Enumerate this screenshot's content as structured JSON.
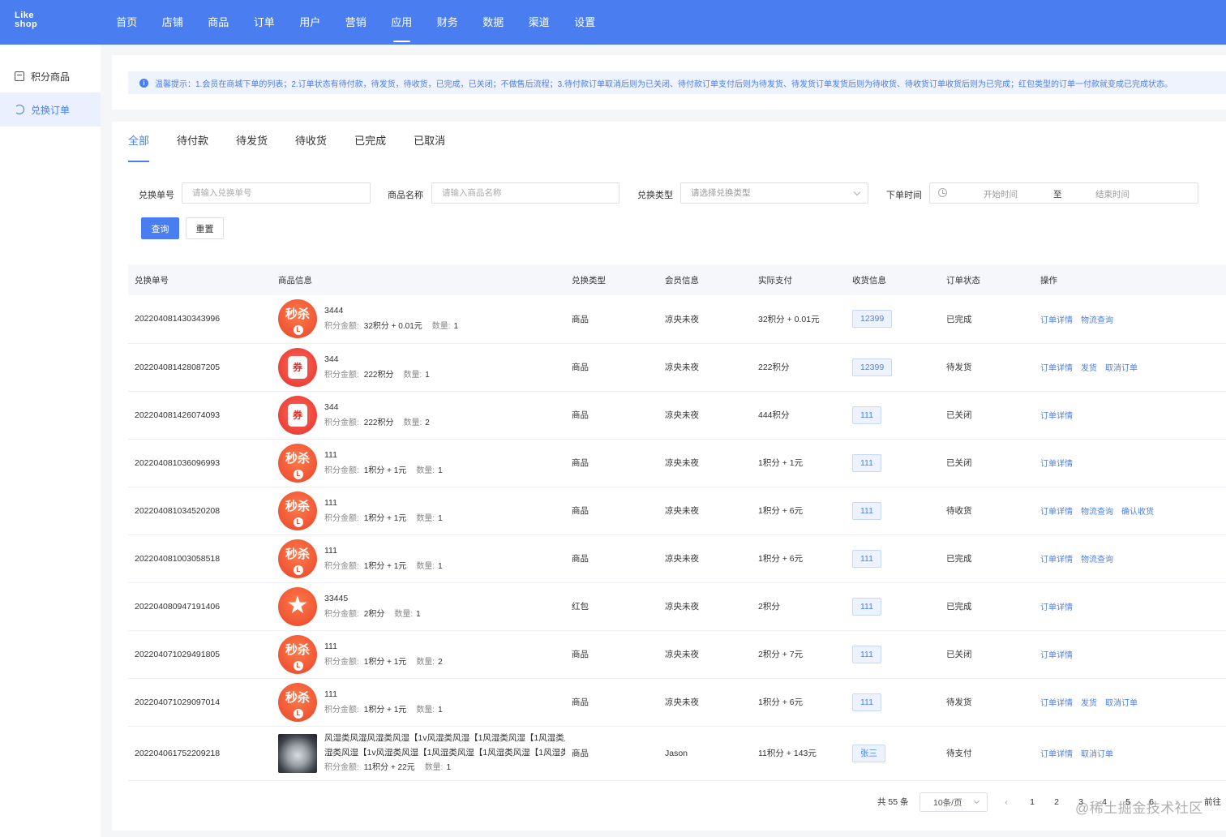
{
  "logo": {
    "line1": "Like",
    "line2": "shop"
  },
  "nav": [
    "首页",
    "店铺",
    "商品",
    "订单",
    "用户",
    "营销",
    "应用",
    "财务",
    "数据",
    "渠道",
    "设置"
  ],
  "nav_active": "应用",
  "sidebar": {
    "items": [
      {
        "label": "积分商品"
      },
      {
        "label": "兑换订单"
      }
    ]
  },
  "tip": {
    "text": "温馨提示：1.会员在商城下单的列表；2.订单状态有待付款，待发货，待收货，已完成，已关闭；不做售后流程；3.待付款订单取消后则为已关闭、待付款订单支付后则为待发货、待发货订单发货后则为待收货、待收货订单收货后则为已完成；红包类型的订单一付款就变成已完成状态。"
  },
  "tabs": [
    "全部",
    "待付款",
    "待发货",
    "待收货",
    "已完成",
    "已取消"
  ],
  "filters": {
    "order_no": {
      "label": "兑换单号",
      "placeholder": "请输入兑换单号"
    },
    "goods_name": {
      "label": "商品名称",
      "placeholder": "请输入商品名称"
    },
    "type": {
      "label": "兑换类型",
      "placeholder": "请选择兑换类型"
    },
    "time": {
      "label": "下单时间",
      "start": "开始时间",
      "sep": "至",
      "end": "结束时间"
    }
  },
  "buttons": {
    "query": "查询",
    "reset": "重置"
  },
  "table": {
    "columns": [
      "兑换单号",
      "商品信息",
      "兑换类型",
      "会员信息",
      "实际支付",
      "收货信息",
      "订单状态",
      "操作"
    ],
    "meta_labels": {
      "amount": "积分金额:",
      "qty": "数量:"
    },
    "rows": [
      {
        "no": "202204081430343996",
        "thumb": "seckill",
        "name": "3444",
        "amount": "32积分 + 0.01元",
        "qty": "1",
        "type": "商品",
        "member": "凉央未夜",
        "paid": "32积分 + 0.01元",
        "receiver": "12399",
        "status": "已完成",
        "ops": [
          "订单详情",
          "物流查询"
        ]
      },
      {
        "no": "202204081428087205",
        "thumb": "coupon",
        "name": "344",
        "amount": "222积分",
        "qty": "1",
        "type": "商品",
        "member": "凉央未夜",
        "paid": "222积分",
        "receiver": "12399",
        "status": "待发货",
        "ops": [
          "订单详情",
          "发货",
          "取消订单"
        ]
      },
      {
        "no": "202204081426074093",
        "thumb": "coupon",
        "name": "344",
        "amount": "222积分",
        "qty": "2",
        "type": "商品",
        "member": "凉央未夜",
        "paid": "444积分",
        "receiver": "111",
        "status": "已关闭",
        "ops": [
          "订单详情"
        ]
      },
      {
        "no": "202204081036096993",
        "thumb": "seckill",
        "name": "111",
        "amount": "1积分 + 1元",
        "qty": "1",
        "type": "商品",
        "member": "凉央未夜",
        "paid": "1积分 + 1元",
        "receiver": "111",
        "status": "已关闭",
        "ops": [
          "订单详情"
        ]
      },
      {
        "no": "202204081034520208",
        "thumb": "seckill",
        "name": "111",
        "amount": "1积分 + 1元",
        "qty": "1",
        "type": "商品",
        "member": "凉央未夜",
        "paid": "1积分 + 6元",
        "receiver": "111",
        "status": "待收货",
        "ops": [
          "订单详情",
          "物流查询",
          "确认收货"
        ]
      },
      {
        "no": "202204081003058518",
        "thumb": "seckill",
        "name": "111",
        "amount": "1积分 + 1元",
        "qty": "1",
        "type": "商品",
        "member": "凉央未夜",
        "paid": "1积分 + 6元",
        "receiver": "111",
        "status": "已完成",
        "ops": [
          "订单详情",
          "物流查询"
        ]
      },
      {
        "no": "202204080947191406",
        "thumb": "star",
        "name": "33445",
        "amount": "2积分",
        "qty": "1",
        "type": "红包",
        "member": "凉央未夜",
        "paid": "2积分",
        "receiver": "111",
        "status": "已完成",
        "ops": [
          "订单详情"
        ]
      },
      {
        "no": "202204071029491805",
        "thumb": "seckill",
        "name": "111",
        "amount": "1积分 + 1元",
        "qty": "2",
        "type": "商品",
        "member": "凉央未夜",
        "paid": "2积分 + 7元",
        "receiver": "111",
        "status": "已关闭",
        "ops": [
          "订单详情"
        ]
      },
      {
        "no": "202204071029097014",
        "thumb": "seckill",
        "name": "111",
        "amount": "1积分 + 1元",
        "qty": "1",
        "type": "商品",
        "member": "凉央未夜",
        "paid": "1积分 + 6元",
        "receiver": "111",
        "status": "待发货",
        "ops": [
          "订单详情",
          "发货",
          "取消订单"
        ]
      },
      {
        "no": "202204061752209218",
        "thumb": "photo",
        "name": "风湿类风湿风湿类风湿【1v风湿类风湿【1风湿类风湿【1风湿类风湿【1风湿类风湿【1v风湿类风湿【1风湿类风湿【1风湿类风湿【1风湿类风湿",
        "amount": "11积分 + 22元",
        "qty": "1",
        "type": "商品",
        "member": "Jason",
        "paid": "11积分 + 143元",
        "receiver": "张三",
        "status": "待支付",
        "ops": [
          "订单详情",
          "取消订单"
        ]
      }
    ]
  },
  "pagination": {
    "total": "共 55 条",
    "page_size": "10条/页",
    "prev": "‹",
    "pages": [
      "1",
      "2",
      "3",
      "4",
      "5",
      "6"
    ],
    "next": "›",
    "goto": "前往"
  },
  "thumb_glyphs": {
    "seckill": "秒杀",
    "coupon": "券",
    "star": "★"
  },
  "watermark": "@稀土掘金技术社区",
  "colors": {
    "primary": "#4a7ef0",
    "tip_bg": "#eef3fe",
    "header_bg": "#f5f7fa"
  }
}
